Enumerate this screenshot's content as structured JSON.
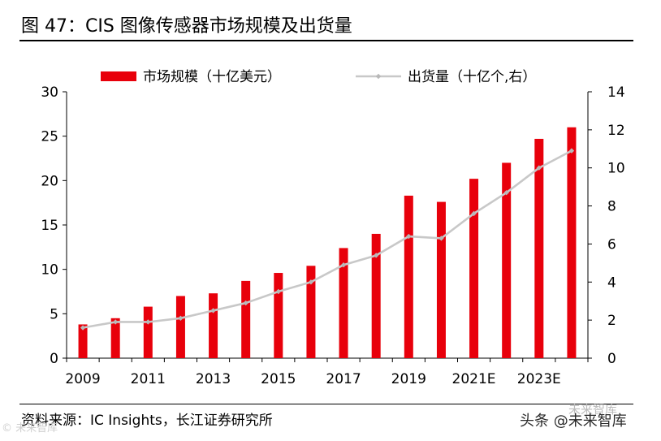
{
  "title": "图 47：CIS 图像传感器市场规模及出货量",
  "source": "资料来源：IC Insights，长江证券研究所",
  "watermarks": {
    "left": "© 未来智库",
    "right": "头条 @未来智库",
    "faint": "未来智库"
  },
  "colors": {
    "bar": "#e8000b",
    "line": "#c8c8c8",
    "marker": "#b8b8b8",
    "axis": "#000000"
  },
  "chart_data": {
    "type": "bar+line",
    "title": "图 47：CIS 图像传感器市场规模及出货量",
    "categories": [
      "2009",
      "2010",
      "2011",
      "2012",
      "2013",
      "2014",
      "2015",
      "2016",
      "2017",
      "2018",
      "2019",
      "2020",
      "2021E",
      "2022E",
      "2023E",
      "2024E"
    ],
    "x_tick_labels": [
      "2009",
      "2011",
      "2013",
      "2015",
      "2017",
      "2019",
      "2021E",
      "2023E"
    ],
    "series": [
      {
        "name": "市场规模（十亿美元）",
        "type": "bar",
        "axis": "left",
        "values": [
          3.8,
          4.5,
          5.8,
          7.0,
          7.3,
          8.7,
          9.6,
          10.4,
          12.4,
          14.0,
          18.3,
          17.6,
          20.2,
          22.0,
          24.7,
          26.0
        ]
      },
      {
        "name": "出货量（十亿个,右）",
        "type": "line",
        "axis": "right",
        "values": [
          1.6,
          1.9,
          1.9,
          2.1,
          2.5,
          2.9,
          3.5,
          4.0,
          4.9,
          5.4,
          6.4,
          6.3,
          7.6,
          8.7,
          10.0,
          10.9
        ]
      }
    ],
    "y_left": {
      "min": 0,
      "max": 30,
      "ticks": [
        0,
        5,
        10,
        15,
        20,
        25,
        30
      ]
    },
    "y_right": {
      "min": 0,
      "max": 14,
      "ticks": [
        0,
        2,
        4,
        6,
        8,
        10,
        12,
        14
      ]
    },
    "legend_position": "top-center",
    "grid": false
  }
}
